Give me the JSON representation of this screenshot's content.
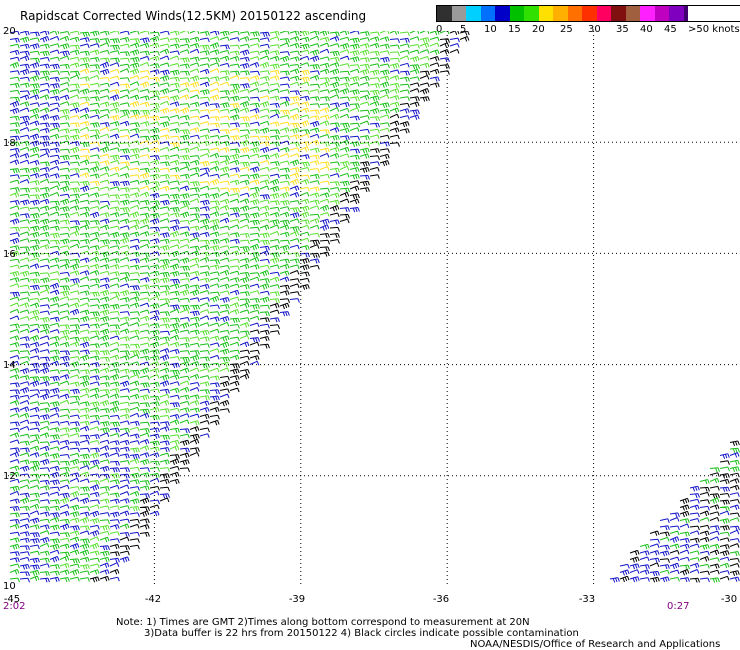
{
  "title": "Rapidscat Corrected Winds(12.5KM) 20150122 ascending",
  "legend": {
    "labels": [
      "0",
      "5",
      "10",
      "15",
      "20",
      "25",
      "30",
      "35",
      "40",
      "45",
      ">50 knots"
    ],
    "colors": [
      "#303030",
      "#9a9a9a",
      "#00d0ff",
      "#0070ff",
      "#0000c8",
      "#00c000",
      "#30e000",
      "#ffe000",
      "#ffb000",
      "#ff7000",
      "#ff3000",
      "#ff0060",
      "#801010",
      "#a06040",
      "#ff20ff",
      "#c000c0",
      "#8000c0",
      "#400070"
    ]
  },
  "axes": {
    "lat_labels": [
      "20",
      "18",
      "16",
      "14",
      "12",
      "10"
    ],
    "lon_labels": [
      "-45",
      "-42",
      "-39",
      "-36",
      "-33",
      "-30"
    ],
    "lon_range": [
      -45,
      -30
    ],
    "lat_range": [
      10,
      20
    ]
  },
  "times": {
    "left": "2:02",
    "right": "0:27"
  },
  "notes": [
    "Note: 1) Times are GMT 2)Times along bottom correspond to measurement at 20N",
    "3)Data buffer is 22 hrs from 20150122 4) Black circles indicate possible contamination",
    "NOAA/NESDIS/Office of Research and Applications"
  ],
  "swaths": [
    {
      "name": "main-swath",
      "polygon": [
        [
          -45,
          20
        ],
        [
          -35.6,
          20
        ],
        [
          -43.0,
          10
        ],
        [
          -45,
          10
        ]
      ]
    },
    {
      "name": "east-swath",
      "polygon": [
        [
          -30,
          12.8
        ],
        [
          -30,
          10
        ],
        [
          -32.9,
          10
        ]
      ]
    }
  ],
  "wind_colors": {
    "blue": "#1414c8",
    "green": "#18c018",
    "lightgreen": "#58e030",
    "black": "#000000",
    "yellow": "#ffe020"
  }
}
